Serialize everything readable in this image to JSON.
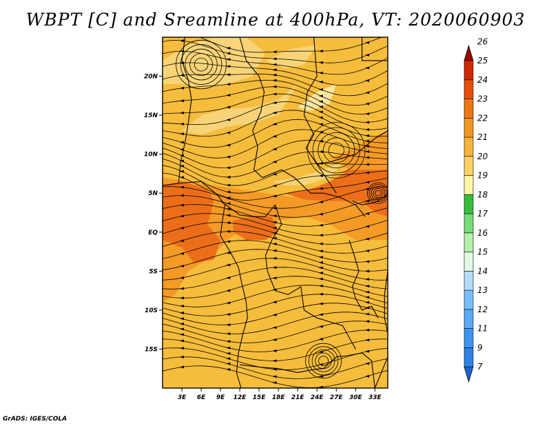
{
  "title": "WBPT [C] and Sreamline at 400hPa, VT: 2020060903",
  "credit": "GrADS: IGES/COLA",
  "map": {
    "lon_range": [
      0,
      35
    ],
    "lat_range": [
      -20,
      25
    ],
    "x_ticks": [
      {
        "value": 3,
        "label": "3E"
      },
      {
        "value": 6,
        "label": "6E"
      },
      {
        "value": 9,
        "label": "9E"
      },
      {
        "value": 12,
        "label": "12E"
      },
      {
        "value": 15,
        "label": "15E"
      },
      {
        "value": 18,
        "label": "18E"
      },
      {
        "value": 21,
        "label": "21E"
      },
      {
        "value": 24,
        "label": "24E"
      },
      {
        "value": 27,
        "label": "27E"
      },
      {
        "value": 30,
        "label": "30E"
      },
      {
        "value": 33,
        "label": "33E"
      }
    ],
    "y_ticks": [
      {
        "value": 20,
        "label": "20N"
      },
      {
        "value": 15,
        "label": "15N"
      },
      {
        "value": 10,
        "label": "10N"
      },
      {
        "value": 5,
        "label": "5N"
      },
      {
        "value": 0,
        "label": "EQ"
      },
      {
        "value": -5,
        "label": "5S"
      },
      {
        "value": -10,
        "label": "10S"
      },
      {
        "value": -15,
        "label": "15S"
      }
    ],
    "colors": {
      "base": "#f6bc3c",
      "warm": "#f49a26",
      "hot": "#ec6e18",
      "cool": "#f8d478",
      "cooler": "#fbe6a0",
      "line": "#000000"
    }
  },
  "colorbar": {
    "levels": [
      {
        "label": "7",
        "color": "#1e64d2"
      },
      {
        "label": "9",
        "color": "#2d82e6"
      },
      {
        "label": "11",
        "color": "#3c96f0"
      },
      {
        "label": "12",
        "color": "#5aaaf5"
      },
      {
        "label": "13",
        "color": "#78befa"
      },
      {
        "label": "14",
        "color": "#b4dcfa"
      },
      {
        "label": "15",
        "color": "#e1fae1"
      },
      {
        "label": "16",
        "color": "#b4f0aa"
      },
      {
        "label": "17",
        "color": "#78dc78"
      },
      {
        "label": "18",
        "color": "#37be3c"
      },
      {
        "label": "19",
        "color": "#fff5aa"
      },
      {
        "label": "20",
        "color": "#fad264"
      },
      {
        "label": "21",
        "color": "#f6b43c"
      },
      {
        "label": "22",
        "color": "#f0961e"
      },
      {
        "label": "23",
        "color": "#ec7814"
      },
      {
        "label": "24",
        "color": "#e6500a"
      },
      {
        "label": "25",
        "color": "#d22800"
      },
      {
        "label": "26",
        "color": "#a00000"
      }
    ]
  }
}
